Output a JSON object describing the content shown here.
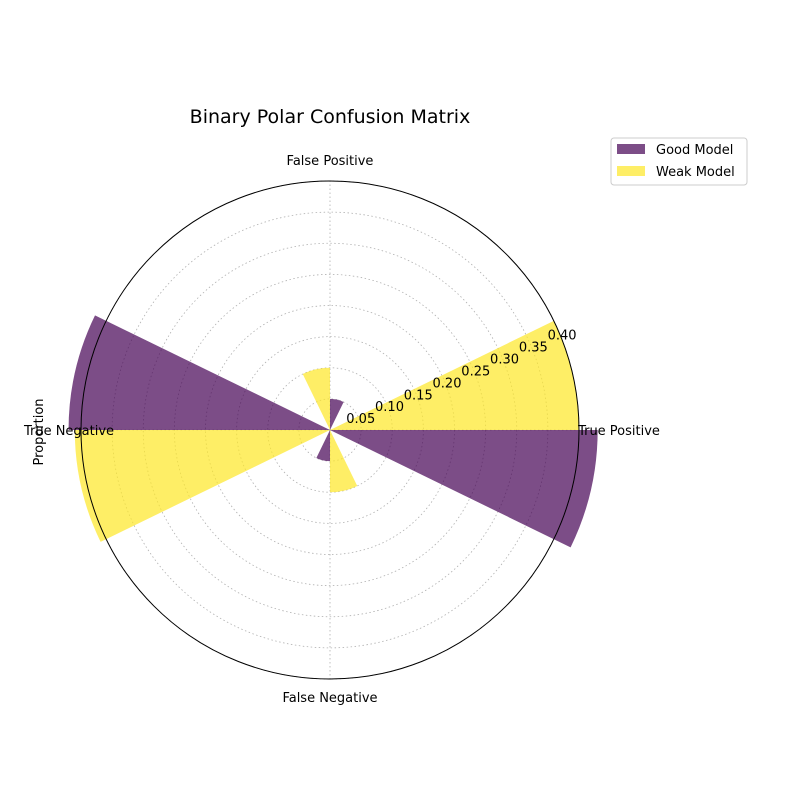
{
  "chart_data": {
    "type": "polar-bar",
    "title": "Binary Polar Confusion Matrix",
    "ylabel": "Proportion",
    "categories": [
      "True Positive",
      "False Positive",
      "True Negative",
      "False Negative"
    ],
    "radial_ticks": [
      "0.05",
      "0.10",
      "0.15",
      "0.20",
      "0.25",
      "0.30",
      "0.35",
      "0.40"
    ],
    "rlim": [
      0,
      0.4
    ],
    "series": [
      {
        "name": "Good Model",
        "values": [
          0.43,
          0.05,
          0.42,
          0.05
        ],
        "color": "#440154",
        "offset": "clockwise"
      },
      {
        "name": "Weak Model",
        "values": [
          0.4,
          0.1,
          0.41,
          0.1
        ],
        "color": "#fde725",
        "offset": "counterclockwise"
      }
    ],
    "grid": true,
    "legend_position": "upper-right-outside"
  }
}
